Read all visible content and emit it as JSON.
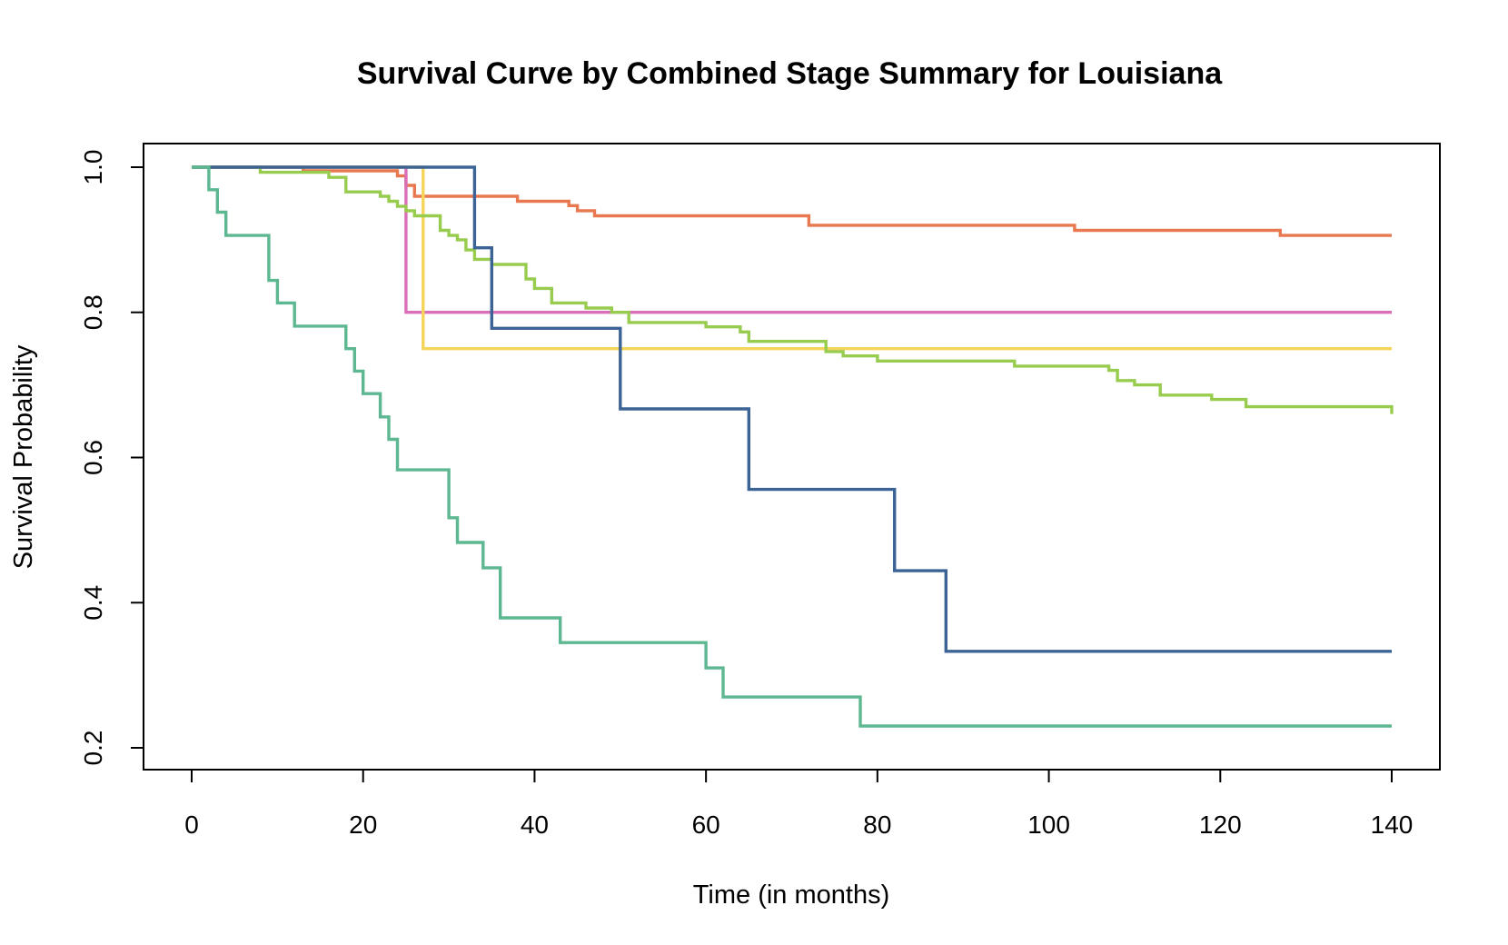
{
  "chart_data": {
    "type": "line",
    "step": true,
    "title": "Survival Curve by Combined Stage Summary for Louisiana",
    "xlabel": "Time (in months)",
    "ylabel": "Survival Probability",
    "xlim": [
      0,
      140
    ],
    "ylim": [
      0.2,
      1.0
    ],
    "xticks": [
      0,
      20,
      40,
      60,
      80,
      100,
      120,
      140
    ],
    "yticks": [
      0.2,
      0.4,
      0.6,
      0.8,
      1.0
    ],
    "xtick_labels": [
      "0",
      "20",
      "40",
      "60",
      "80",
      "100",
      "120",
      "140"
    ],
    "ytick_labels": [
      "0.2",
      "0.4",
      "0.6",
      "0.8",
      "1.0"
    ],
    "grid": false,
    "legend": "none",
    "series": [
      {
        "color": "#E8784F",
        "x": [
          0,
          13,
          24,
          25,
          26,
          38,
          44,
          45,
          47,
          72,
          103,
          127,
          140
        ],
        "y": [
          1.0,
          0.995,
          0.988,
          0.975,
          0.96,
          0.953,
          0.947,
          0.94,
          0.933,
          0.92,
          0.913,
          0.906,
          0.906
        ]
      },
      {
        "color": "#D96FB8",
        "x": [
          0,
          25,
          140
        ],
        "y": [
          1.0,
          0.8,
          0.8
        ]
      },
      {
        "color": "#F5D45A",
        "x": [
          0,
          27,
          140
        ],
        "y": [
          1.0,
          0.75,
          0.75
        ]
      },
      {
        "color": "#97CC4F",
        "x": [
          0,
          8,
          16,
          18,
          22,
          23,
          24,
          25,
          26,
          29,
          30,
          31,
          32,
          33,
          35,
          39,
          40,
          42,
          46,
          49,
          51,
          60,
          64,
          65,
          74,
          76,
          80,
          96,
          107,
          108,
          110,
          113,
          119,
          123,
          140
        ],
        "y": [
          1.0,
          0.993,
          0.986,
          0.966,
          0.96,
          0.953,
          0.946,
          0.94,
          0.933,
          0.913,
          0.906,
          0.9,
          0.886,
          0.873,
          0.866,
          0.846,
          0.833,
          0.813,
          0.806,
          0.8,
          0.786,
          0.78,
          0.773,
          0.76,
          0.746,
          0.74,
          0.733,
          0.726,
          0.72,
          0.706,
          0.7,
          0.686,
          0.68,
          0.67,
          0.66
        ]
      },
      {
        "color": "#3B6396",
        "x": [
          0,
          33,
          35,
          50,
          65,
          82,
          88,
          140
        ],
        "y": [
          1.0,
          0.889,
          0.778,
          0.667,
          0.556,
          0.444,
          0.333,
          0.333
        ]
      },
      {
        "color": "#5DB892",
        "x": [
          0,
          2,
          3,
          4,
          9,
          10,
          12,
          18,
          19,
          20,
          22,
          23,
          24,
          30,
          31,
          34,
          36,
          43,
          60,
          62,
          78,
          140
        ],
        "y": [
          1.0,
          0.969,
          0.938,
          0.906,
          0.844,
          0.813,
          0.781,
          0.75,
          0.719,
          0.688,
          0.656,
          0.625,
          0.583,
          0.517,
          0.483,
          0.448,
          0.379,
          0.345,
          0.31,
          0.27,
          0.23,
          0.23
        ]
      }
    ]
  }
}
